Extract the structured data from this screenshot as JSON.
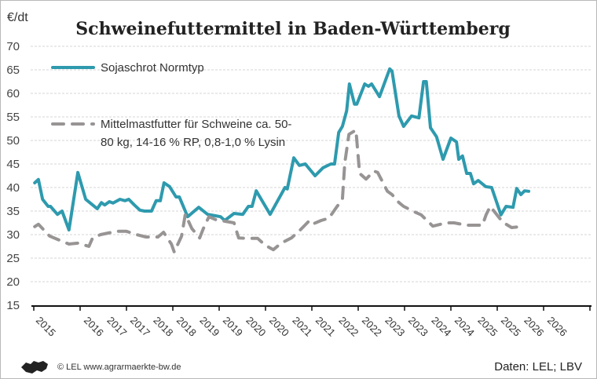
{
  "chart_data": {
    "type": "line",
    "title": "Schweinefuttermittel in Baden-Württemberg",
    "ylabel": "€/dt",
    "ylim": [
      15,
      70
    ],
    "yticks": [
      15,
      20,
      25,
      30,
      35,
      40,
      45,
      50,
      55,
      60,
      65,
      70
    ],
    "xlim": [
      2015,
      2027
    ],
    "xtick_labels": [
      "2015",
      "2016",
      "2017",
      "2017",
      "2018",
      "2018",
      "2019",
      "2019",
      "2020",
      "2020",
      "2021",
      "2021",
      "2022",
      "2022",
      "2023",
      "2023",
      "2024",
      "2024",
      "2025",
      "2025",
      "2026",
      "2026"
    ],
    "grid": "horizontal dotted",
    "legend_placement": "top-left",
    "series": [
      {
        "name": "Sojaschrot Normtyp",
        "color": "#2e9aae",
        "style": "solid",
        "points": [
          [
            2015.02,
            41
          ],
          [
            2015.1,
            41.7
          ],
          [
            2015.19,
            37.5
          ],
          [
            2015.31,
            36
          ],
          [
            2015.36,
            36
          ],
          [
            2015.51,
            34.3
          ],
          [
            2015.61,
            35
          ],
          [
            2015.76,
            31
          ],
          [
            2015.95,
            43.2
          ],
          [
            2016.12,
            37.5
          ],
          [
            2016.27,
            36.3
          ],
          [
            2016.37,
            35.5
          ],
          [
            2016.46,
            36.8
          ],
          [
            2016.53,
            36.3
          ],
          [
            2016.63,
            37
          ],
          [
            2016.71,
            36.7
          ],
          [
            2016.86,
            37.5
          ],
          [
            2016.97,
            37.2
          ],
          [
            2017.05,
            37.5
          ],
          [
            2017.17,
            36.3
          ],
          [
            2017.29,
            35.2
          ],
          [
            2017.39,
            35
          ],
          [
            2017.54,
            35
          ],
          [
            2017.64,
            37.2
          ],
          [
            2017.73,
            37.2
          ],
          [
            2017.81,
            41
          ],
          [
            2017.93,
            40.2
          ],
          [
            2018.07,
            38
          ],
          [
            2018.14,
            38
          ],
          [
            2018.32,
            33.8
          ],
          [
            2018.56,
            35.8
          ],
          [
            2018.75,
            34.3
          ],
          [
            2018.92,
            34
          ],
          [
            2019.03,
            33.8
          ],
          [
            2019.12,
            33
          ],
          [
            2019.32,
            34.5
          ],
          [
            2019.51,
            34.3
          ],
          [
            2019.63,
            36
          ],
          [
            2019.71,
            36
          ],
          [
            2019.8,
            39.3
          ],
          [
            2020.1,
            34.3
          ],
          [
            2020.42,
            40
          ],
          [
            2020.47,
            39.7
          ],
          [
            2020.61,
            46.3
          ],
          [
            2020.73,
            44.7
          ],
          [
            2020.86,
            45
          ],
          [
            2021.07,
            42.5
          ],
          [
            2021.24,
            44.2
          ],
          [
            2021.41,
            45
          ],
          [
            2021.49,
            45
          ],
          [
            2021.58,
            51.7
          ],
          [
            2021.66,
            53
          ],
          [
            2021.75,
            56.3
          ],
          [
            2021.81,
            62
          ],
          [
            2021.92,
            57.7
          ],
          [
            2021.97,
            57.7
          ],
          [
            2022.14,
            62
          ],
          [
            2022.22,
            61.5
          ],
          [
            2022.29,
            62
          ],
          [
            2022.46,
            59.3
          ],
          [
            2022.68,
            65.2
          ],
          [
            2022.73,
            64.7
          ],
          [
            2022.88,
            55.2
          ],
          [
            2022.98,
            53
          ],
          [
            2023.15,
            55.2
          ],
          [
            2023.31,
            54.8
          ],
          [
            2023.41,
            62.5
          ],
          [
            2023.47,
            62.5
          ],
          [
            2023.56,
            52.7
          ],
          [
            2023.69,
            50.8
          ],
          [
            2023.83,
            46
          ],
          [
            2024.0,
            50.5
          ],
          [
            2024.12,
            49.7
          ],
          [
            2024.17,
            46
          ],
          [
            2024.25,
            46.7
          ],
          [
            2024.34,
            43
          ],
          [
            2024.42,
            43
          ],
          [
            2024.49,
            40.8
          ],
          [
            2024.59,
            41.5
          ],
          [
            2024.75,
            40.2
          ],
          [
            2024.88,
            40
          ],
          [
            2025.08,
            34.2
          ],
          [
            2025.19,
            36
          ],
          [
            2025.34,
            35.8
          ],
          [
            2025.42,
            39.8
          ],
          [
            2025.51,
            38.5
          ],
          [
            2025.59,
            39.3
          ],
          [
            2025.68,
            39.2
          ]
        ]
      },
      {
        "name": "Mittelmastfutter für Schweine ca. 50-80 kg, 14-16 % RP, 0,8-1,0 % Lysin",
        "legend_lines": [
          "Mittelmastfutter für Schweine ca. 50-",
          "80 kg, 14-16 % RP, 0,8-1,0 % Lysin"
        ],
        "color": "#989494",
        "style": "dashed",
        "points": [
          [
            2015.02,
            31.7
          ],
          [
            2015.1,
            32.2
          ],
          [
            2015.34,
            29.7
          ],
          [
            2015.51,
            29
          ],
          [
            2015.76,
            28
          ],
          [
            2015.95,
            28.2
          ],
          [
            2016.19,
            27.5
          ],
          [
            2016.27,
            29.3
          ],
          [
            2016.44,
            30
          ],
          [
            2016.78,
            30.7
          ],
          [
            2017.0,
            30.7
          ],
          [
            2017.22,
            30
          ],
          [
            2017.42,
            29.5
          ],
          [
            2017.68,
            29.5
          ],
          [
            2017.8,
            30.5
          ],
          [
            2017.97,
            28
          ],
          [
            2018.03,
            26.3
          ],
          [
            2018.19,
            29.7
          ],
          [
            2018.27,
            34.3
          ],
          [
            2018.41,
            31.3
          ],
          [
            2018.58,
            29.3
          ],
          [
            2018.66,
            31.3
          ],
          [
            2018.78,
            33.8
          ],
          [
            2018.92,
            33.2
          ],
          [
            2019.32,
            32.5
          ],
          [
            2019.42,
            29.3
          ],
          [
            2019.59,
            29.2
          ],
          [
            2019.83,
            29.2
          ],
          [
            2020.0,
            27.7
          ],
          [
            2020.17,
            26.8
          ],
          [
            2020.34,
            28.2
          ],
          [
            2020.56,
            29.3
          ],
          [
            2020.73,
            30.8
          ],
          [
            2020.9,
            32.5
          ],
          [
            2020.95,
            33
          ],
          [
            2021.03,
            32.3
          ],
          [
            2021.2,
            33
          ],
          [
            2021.37,
            33.5
          ],
          [
            2021.53,
            35.8
          ],
          [
            2021.66,
            37.5
          ],
          [
            2021.71,
            45.2
          ],
          [
            2021.8,
            51.3
          ],
          [
            2021.95,
            52.2
          ],
          [
            2022.03,
            43
          ],
          [
            2022.17,
            41.8
          ],
          [
            2022.34,
            43.5
          ],
          [
            2022.42,
            43.2
          ],
          [
            2022.63,
            39.2
          ],
          [
            2022.73,
            38.5
          ],
          [
            2022.88,
            36.8
          ],
          [
            2022.98,
            36
          ],
          [
            2023.22,
            34.8
          ],
          [
            2023.36,
            34.2
          ],
          [
            2023.61,
            31.8
          ],
          [
            2023.9,
            32.5
          ],
          [
            2024.07,
            32.5
          ],
          [
            2024.34,
            32
          ],
          [
            2024.68,
            32
          ],
          [
            2024.76,
            34.2
          ],
          [
            2024.85,
            36
          ],
          [
            2025.05,
            33.5
          ],
          [
            2025.14,
            32.5
          ],
          [
            2025.31,
            31.5
          ],
          [
            2025.51,
            31.7
          ]
        ]
      }
    ]
  },
  "footer": {
    "credit": "© LEL www.agrarmaerkte-bw.de",
    "source": "Daten: LEL; LBV",
    "logo": "Baden-Württemberg lion logo"
  }
}
